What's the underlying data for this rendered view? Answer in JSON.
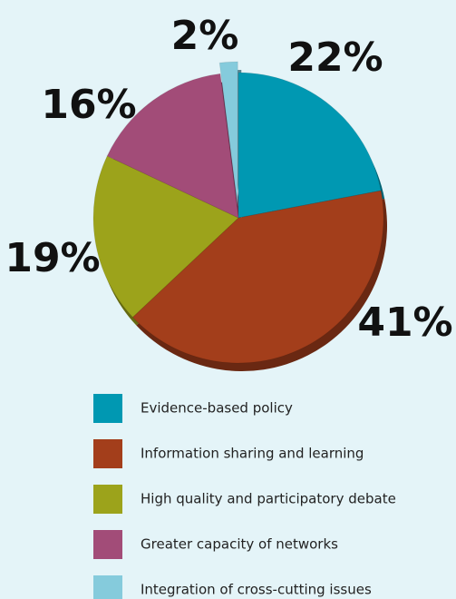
{
  "chart_data": {
    "type": "pie",
    "categories": [
      "Evidence-based policy",
      "Information sharing and learning",
      "High quality and participatory debate",
      "Greater capacity of networks",
      "Integration of cross-cutting issues"
    ],
    "values": [
      22,
      41,
      19,
      16,
      2
    ],
    "value_labels": [
      "22%",
      "41%",
      "19%",
      "16%",
      "2%"
    ],
    "colors": [
      "#0098b2",
      "#a33e1b",
      "#9ca31b",
      "#a24c78",
      "#85cbdc"
    ],
    "legend": "bottom"
  }
}
